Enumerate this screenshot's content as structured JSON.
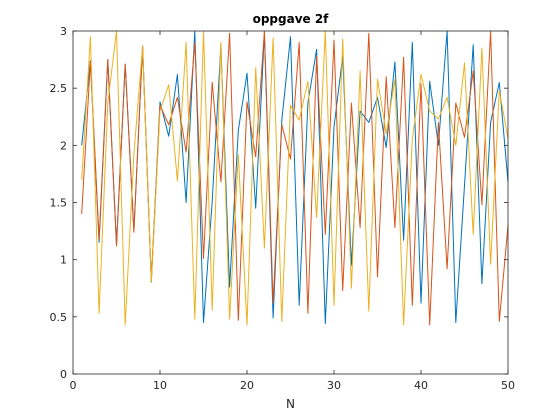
{
  "chart_data": {
    "type": "line",
    "title": "oppgave 2f",
    "xlabel": "N",
    "ylabel": "",
    "xlim": [
      0,
      50
    ],
    "ylim": [
      0,
      3
    ],
    "xticks": [
      0,
      10,
      20,
      30,
      40,
      50
    ],
    "yticks": [
      0,
      0.5,
      1,
      1.5,
      2,
      2.5,
      3
    ],
    "grid": false,
    "box": true,
    "series": [
      {
        "color": "#0072BD",
        "x": [
          1,
          2,
          3,
          4,
          5,
          6,
          7,
          8,
          9,
          10,
          11,
          12,
          13,
          14,
          15,
          16,
          17,
          18,
          19,
          20,
          21,
          22,
          23,
          24,
          25,
          26,
          27,
          28,
          29,
          30,
          31,
          32,
          33,
          34,
          35,
          36,
          37,
          38,
          39,
          40,
          41,
          42,
          43,
          44,
          45,
          46,
          47,
          48,
          49,
          50
        ],
        "y": [
          2.0,
          2.74,
          1.15,
          2.75,
          1.13,
          2.71,
          1.25,
          2.87,
          0.8,
          2.38,
          2.08,
          2.62,
          1.5,
          3.0,
          0.45,
          1.51,
          2.88,
          0.76,
          2.13,
          2.63,
          1.45,
          2.98,
          0.49,
          2.22,
          2.95,
          0.6,
          2.37,
          2.84,
          0.44,
          2.16,
          2.78,
          0.95,
          2.3,
          2.2,
          2.42,
          1.98,
          2.73,
          1.17,
          2.9,
          0.62,
          2.56,
          2.0,
          3.0,
          0.45,
          1.65,
          2.88,
          0.79,
          2.2,
          2.55,
          1.68
        ]
      },
      {
        "color": "#D95319",
        "x": [
          1,
          2,
          3,
          4,
          5,
          6,
          7,
          8,
          9,
          10,
          11,
          12,
          13,
          14,
          15,
          16,
          17,
          18,
          19,
          20,
          21,
          22,
          23,
          24,
          25,
          26,
          27,
          28,
          29,
          30,
          31,
          32,
          33,
          34,
          35,
          36,
          37,
          38,
          39,
          40,
          41,
          42,
          43,
          44,
          45,
          46,
          47,
          48,
          49,
          50
        ],
        "y": [
          1.4,
          2.73,
          1.18,
          2.75,
          1.12,
          2.71,
          1.24,
          2.87,
          0.82,
          2.35,
          2.18,
          2.42,
          1.94,
          2.9,
          1.01,
          2.55,
          1.68,
          2.98,
          0.47,
          2.38,
          1.9,
          3.0,
          0.62,
          2.18,
          1.88,
          2.9,
          0.53,
          2.78,
          1.22,
          2.92,
          0.73,
          2.37,
          1.28,
          2.98,
          0.85,
          2.6,
          1.28,
          2.77,
          0.6,
          2.54,
          0.43,
          2.2,
          0.92,
          2.37,
          2.07,
          2.65,
          1.48,
          3.0,
          0.46,
          1.3
        ]
      },
      {
        "color": "#EDB120",
        "x": [
          1,
          2,
          3,
          4,
          5,
          6,
          7,
          8,
          9,
          10,
          11,
          12,
          13,
          14,
          15,
          16,
          17,
          18,
          19,
          20,
          21,
          22,
          23,
          24,
          25,
          26,
          27,
          28,
          29,
          30,
          31,
          32,
          33,
          34,
          35,
          36,
          37,
          38,
          39,
          40,
          41,
          42,
          43,
          44,
          45,
          46,
          47,
          48,
          49,
          50
        ],
        "y": [
          1.7,
          2.95,
          0.53,
          2.37,
          3.0,
          0.43,
          1.92,
          2.87,
          0.8,
          2.3,
          2.53,
          1.69,
          2.9,
          0.48,
          3.0,
          0.56,
          2.9,
          0.48,
          1.92,
          0.43,
          2.68,
          1.1,
          2.94,
          0.46,
          2.35,
          2.22,
          2.56,
          1.37,
          3.0,
          0.6,
          2.93,
          0.75,
          2.65,
          0.55,
          2.58,
          2.1,
          2.58,
          0.43,
          2.05,
          2.62,
          2.3,
          2.23,
          2.42,
          2.0,
          2.72,
          1.22,
          2.85,
          0.96,
          2.48,
          2.06
        ]
      }
    ]
  }
}
